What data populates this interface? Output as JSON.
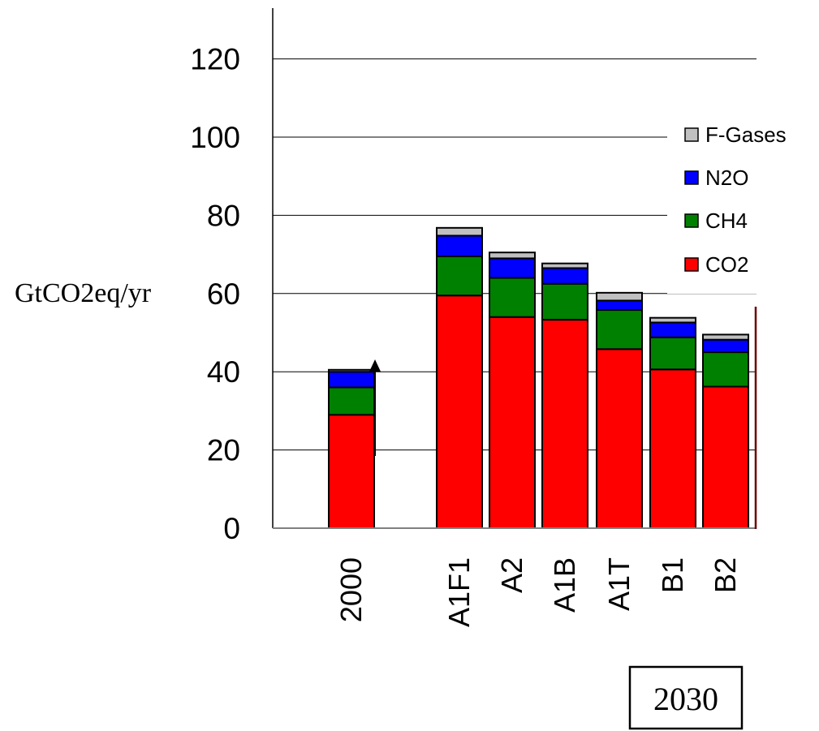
{
  "chart_data": {
    "type": "bar",
    "stacked": true,
    "categories": [
      "2000",
      "A1F1",
      "A2",
      "A1B",
      "A1T",
      "B1",
      "B2"
    ],
    "series": [
      {
        "name": "CO2",
        "color": "#ff0000",
        "values": [
          29,
          59.5,
          54,
          53.3,
          45.8,
          40.6,
          36.2
        ]
      },
      {
        "name": "CH4",
        "color": "#008000",
        "values": [
          7,
          10,
          10,
          9.2,
          10,
          8.2,
          8.8
        ]
      },
      {
        "name": "N2O",
        "color": "#0000ff",
        "values": [
          4,
          5.3,
          5,
          4,
          2.4,
          3.8,
          3.2
        ]
      },
      {
        "name": "F-Gases",
        "color": "#c0c0c0",
        "values": [
          0.5,
          2,
          1.5,
          1.2,
          2,
          1.2,
          1.3
        ]
      }
    ],
    "ylabel": "GtCO2eq/yr",
    "ylim": [
      0,
      130
    ],
    "yticks": [
      0,
      20,
      40,
      60,
      80,
      100,
      120
    ],
    "group_label": "2030",
    "grid": true,
    "legend_position": "right",
    "legend_order": [
      "F-Gases",
      "N2O",
      "CH4",
      "CO2"
    ]
  }
}
